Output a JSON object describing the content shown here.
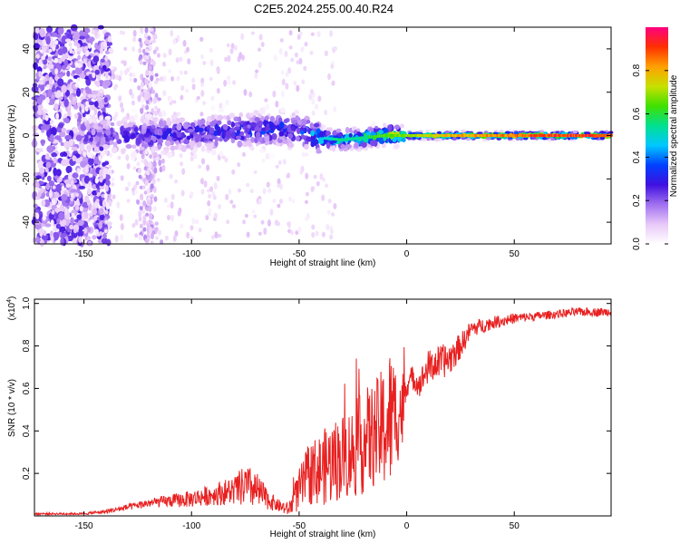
{
  "title": "C2E5.2024.255.00.40.R24",
  "chart_data": [
    {
      "type": "heatmap",
      "xlabel": "Height of straight line (km)",
      "ylabel": "Frequency (Hz)",
      "xlim": [
        -173,
        95
      ],
      "ylim": [
        -50,
        50
      ],
      "xticks": [
        -150,
        -100,
        -50,
        0,
        50
      ],
      "yticks": [
        -40,
        -20,
        0,
        20,
        40
      ],
      "ridge": {
        "description_points_x": [
          -145,
          -120,
          -100,
          -80,
          -60,
          -50,
          -40,
          -30,
          -20,
          -10,
          0,
          20,
          40,
          60,
          80,
          95
        ],
        "center_freq_hz": [
          0,
          0,
          1,
          2,
          3,
          2,
          -1,
          -2,
          -1,
          0,
          0,
          0,
          0,
          0,
          0,
          0
        ],
        "peak_amplitude": [
          0.25,
          0.3,
          0.3,
          0.35,
          0.35,
          0.35,
          0.5,
          0.6,
          0.6,
          0.7,
          0.75,
          0.85,
          0.9,
          0.95,
          0.97,
          0.97
        ]
      },
      "colorbar": {
        "label": "Normalized spectral amplitude",
        "ticks": [
          0.0,
          0.2,
          0.4,
          0.6,
          0.8
        ],
        "range": [
          0,
          1
        ],
        "colors": [
          "#ffffff",
          "#e8c8f8",
          "#a070f0",
          "#4010e0",
          "#0040ff",
          "#00c8ff",
          "#00e090",
          "#40e000",
          "#c8e000",
          "#ffa000",
          "#ff3000",
          "#ff0080"
        ]
      },
      "grid": false
    },
    {
      "type": "line",
      "xlabel": "Height of straight line (km)",
      "ylabel": "SNR (10 * v/v)",
      "multiplier_label": "(x10",
      "multiplier_exp": "4",
      "multiplier_close": ")",
      "xlim": [
        -173,
        95
      ],
      "ylim": [
        0,
        1.02
      ],
      "xticks": [
        -150,
        -100,
        -50,
        0,
        50
      ],
      "yticks": [
        0.2,
        0.4,
        0.6,
        0.8,
        1.0
      ],
      "color": "#e82020",
      "x": [
        -173,
        -160,
        -150,
        -140,
        -130,
        -120,
        -110,
        -100,
        -90,
        -80,
        -75,
        -70,
        -65,
        -60,
        -55,
        -50,
        -45,
        -40,
        -35,
        -30,
        -25,
        -20,
        -15,
        -10,
        -8,
        -5,
        -2,
        0,
        3,
        6,
        10,
        15,
        20,
        25,
        30,
        40,
        50,
        60,
        70,
        80,
        90,
        95
      ],
      "y": [
        0.01,
        0.01,
        0.01,
        0.02,
        0.04,
        0.06,
        0.07,
        0.08,
        0.1,
        0.12,
        0.14,
        0.12,
        0.08,
        0.05,
        0.03,
        0.12,
        0.2,
        0.22,
        0.25,
        0.28,
        0.3,
        0.35,
        0.38,
        0.42,
        0.45,
        0.48,
        0.5,
        0.62,
        0.65,
        0.62,
        0.7,
        0.72,
        0.74,
        0.8,
        0.88,
        0.91,
        0.93,
        0.94,
        0.95,
        0.96,
        0.96,
        0.96
      ],
      "noise": [
        0.005,
        0.005,
        0.005,
        0.01,
        0.015,
        0.02,
        0.03,
        0.04,
        0.05,
        0.07,
        0.1,
        0.09,
        0.05,
        0.03,
        0.03,
        0.1,
        0.15,
        0.17,
        0.2,
        0.2,
        0.22,
        0.25,
        0.25,
        0.3,
        0.35,
        0.25,
        0.2,
        0.06,
        0.06,
        0.06,
        0.08,
        0.08,
        0.08,
        0.06,
        0.04,
        0.03,
        0.025,
        0.02,
        0.02,
        0.02,
        0.02,
        0.02
      ]
    }
  ]
}
